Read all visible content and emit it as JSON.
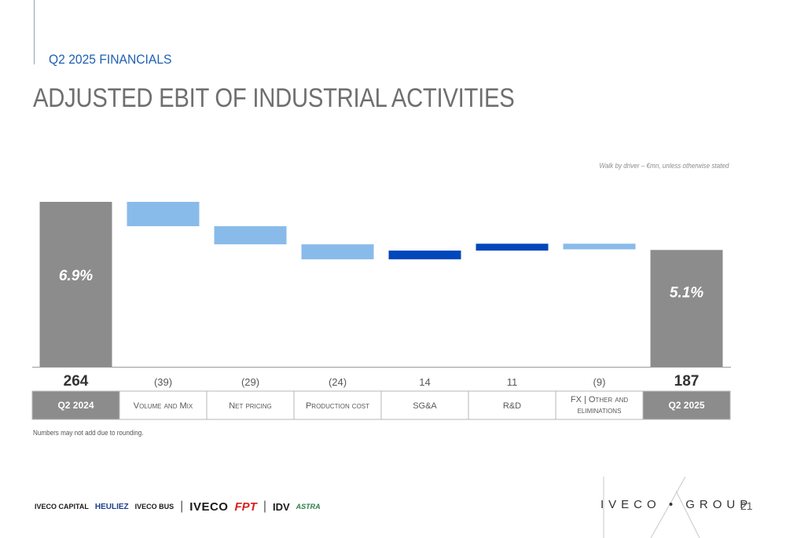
{
  "header": {
    "subtitle": "Q2 2025 FINANCIALS",
    "title": "ADJUSTED EBIT OF INDUSTRIAL ACTIVITIES"
  },
  "note": "Walk by driver – €mn, unless otherwise stated",
  "chart_data": {
    "type": "bar",
    "subtype": "waterfall",
    "categories": [
      {
        "label": "Q2 2024",
        "smallcaps": false,
        "total": true
      },
      {
        "label": "Volume and Mix",
        "smallcaps": true,
        "total": false
      },
      {
        "label": "Net pricing",
        "smallcaps": true,
        "total": false
      },
      {
        "label": "Production cost",
        "smallcaps": true,
        "total": false
      },
      {
        "label": "SG&A",
        "smallcaps": false,
        "total": false
      },
      {
        "label": "R&D",
        "smallcaps": false,
        "total": false
      },
      {
        "label": "FX | Other and eliminations",
        "smallcaps": true,
        "total": false
      },
      {
        "label": "Q2 2025",
        "smallcaps": false,
        "total": true
      }
    ],
    "values": [
      264,
      -39,
      -29,
      -24,
      14,
      11,
      -9,
      187
    ],
    "value_labels": [
      "264",
      "(39)",
      "(29)",
      "(24)",
      "14",
      "11",
      "(9)",
      "187"
    ],
    "margin_labels": [
      "6.9%",
      "",
      "",
      "",
      "",
      "",
      "",
      "5.1%"
    ],
    "colors": {
      "total": "#8c8c8c",
      "negative": "#89bbea",
      "positive": "#0047bb",
      "header_cell": "#8c8c8c"
    }
  },
  "footnote": "Numbers may not add due to rounding.",
  "footer": {
    "brands": {
      "iveco_capital": "IVECO CAPITAL",
      "heuliez": "HEULIEZ",
      "iveco_bus": "IVECO BUS",
      "iveco": "IVECO",
      "fpt": "FPT",
      "idv": "IDV",
      "astra": "ASTRA"
    },
    "separator": "|",
    "group_logo": "IVECO • GROUP",
    "page_number": "21"
  }
}
